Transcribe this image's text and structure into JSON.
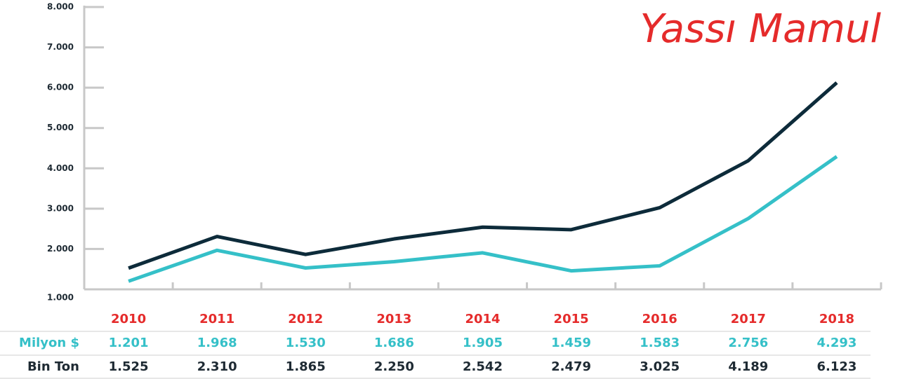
{
  "chart_data": {
    "type": "line",
    "title": "Yassı Mamul",
    "categories": [
      "2010",
      "2011",
      "2012",
      "2013",
      "2014",
      "2015",
      "2016",
      "2017",
      "2018"
    ],
    "series": [
      {
        "name": "Milyon $",
        "color": "#35c0c8",
        "values": [
          1201,
          1968,
          1530,
          1686,
          1905,
          1459,
          1583,
          2756,
          4293
        ],
        "value_labels": [
          "1.201",
          "1.968",
          "1.530",
          "1.686",
          "1.905",
          "1.459",
          "1.583",
          "2.756",
          "4.293"
        ]
      },
      {
        "name": "Bin Ton",
        "color": "#0d2b3a",
        "values": [
          1525,
          2310,
          1865,
          2250,
          2542,
          2479,
          3025,
          4189,
          6123
        ],
        "value_labels": [
          "1.525",
          "2.310",
          "1.865",
          "2.250",
          "2.542",
          "2.479",
          "3.025",
          "4.189",
          "6.123"
        ]
      }
    ],
    "ylim": [
      1000,
      8000
    ],
    "yticks": [
      {
        "value": 1000,
        "label": "1.000"
      },
      {
        "value": 2000,
        "label": "2.000"
      },
      {
        "value": 3000,
        "label": "3.000"
      },
      {
        "value": 4000,
        "label": "4.000"
      },
      {
        "value": 5000,
        "label": "5.000"
      },
      {
        "value": 6000,
        "label": "6.000"
      },
      {
        "value": 7000,
        "label": "7.000"
      },
      {
        "value": 8000,
        "label": "8.000"
      }
    ],
    "category_color": "#e52b2b"
  }
}
